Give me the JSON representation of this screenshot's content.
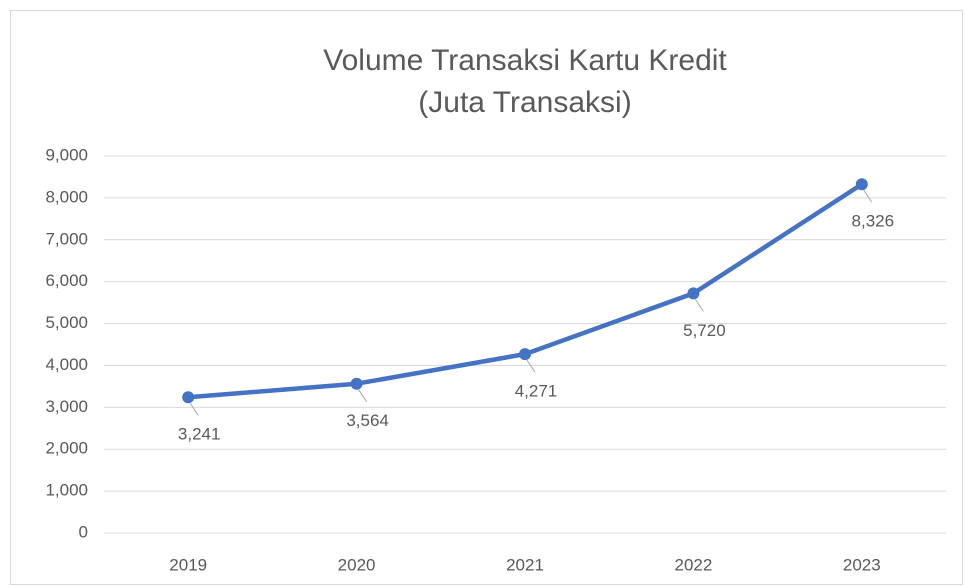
{
  "chart_data": {
    "type": "line",
    "title": "Volume Transaksi Kartu Kredit",
    "subtitle": "(Juta Transaksi)",
    "categories": [
      "2019",
      "2020",
      "2021",
      "2022",
      "2023"
    ],
    "values": [
      3241,
      3564,
      4271,
      5720,
      8326
    ],
    "value_labels": [
      "3,241",
      "3,564",
      "4,271",
      "5,720",
      "8,326"
    ],
    "color": "#4472c4",
    "ylim": [
      0,
      9000
    ],
    "yticks": [
      0,
      {
        "value": 1000,
        "label": "1,000"
      },
      {
        "value": 2000,
        "label": "2,000"
      },
      {
        "value": 3000,
        "label": "3,000"
      },
      {
        "value": 4000,
        "label": "4,000"
      },
      {
        "value": 5000,
        "label": "5,000"
      },
      {
        "value": 6000,
        "label": "6,000"
      },
      {
        "value": 7000,
        "label": "7,000"
      },
      {
        "value": 8000,
        "label": "8,000"
      },
      {
        "value": 9000,
        "label": "9,000"
      }
    ],
    "grid": true
  }
}
